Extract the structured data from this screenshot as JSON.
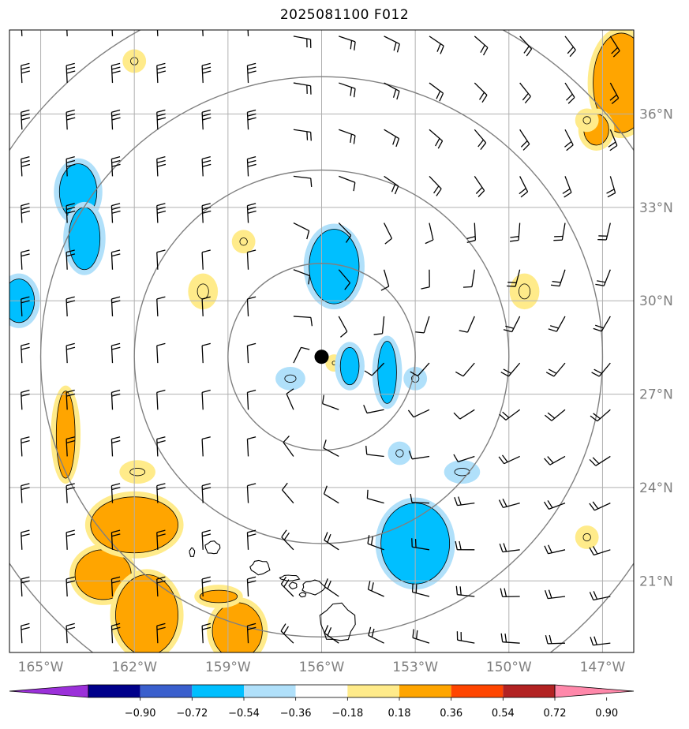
{
  "title": "2025081100 F012",
  "map": {
    "lon_range": [
      -166.0,
      -146.0
    ],
    "lat_range": [
      18.7,
      38.7
    ],
    "lon_ticks": [
      {
        "lon": -165,
        "label": "165°W"
      },
      {
        "lon": -162,
        "label": "162°W"
      },
      {
        "lon": -159,
        "label": "159°W"
      },
      {
        "lon": -156,
        "label": "156°W"
      },
      {
        "lon": -153,
        "label": "153°W"
      },
      {
        "lon": -150,
        "label": "150°W"
      },
      {
        "lon": -147,
        "label": "147°W"
      }
    ],
    "lat_ticks": [
      {
        "lat": 21,
        "label": "21°N"
      },
      {
        "lat": 24,
        "label": "24°N"
      },
      {
        "lat": 27,
        "label": "27°N"
      },
      {
        "lat": 30,
        "label": "30°N"
      },
      {
        "lat": 33,
        "label": "33°N"
      },
      {
        "lat": 36,
        "label": "36°N"
      }
    ],
    "center": {
      "lon": -156.0,
      "lat": 28.2
    },
    "range_rings_deg": [
      3.0,
      6.0,
      9.0,
      12.0
    ],
    "grid": true,
    "colors": {
      "grid": "#b0b0b0",
      "ring": "#808080",
      "frame": "#000000",
      "coast": "#000000",
      "barb": "#000000"
    }
  },
  "colorbar": {
    "levels": [
      "−0.90",
      "−0.72",
      "−0.54",
      "−0.36",
      "−0.18",
      "0.18",
      "0.36",
      "0.54",
      "0.72",
      "0.90"
    ],
    "colors": [
      "#9b30d9",
      "#00008b",
      "#3a5fcd",
      "#00bfff",
      "#b0e0fa",
      "#ffffff",
      "#ffeb8a",
      "#ffa500",
      "#ff4500",
      "#b22222",
      "#ff88aa"
    ],
    "extend": "both"
  },
  "features": {
    "positive_regions": [
      {
        "lon": -163.0,
        "lat": 21.2,
        "rlon": 0.9,
        "rlat": 0.8,
        "core": true
      },
      {
        "lon": -162.0,
        "lat": 22.8,
        "rlon": 1.4,
        "rlat": 0.9,
        "core": true
      },
      {
        "lon": -161.6,
        "lat": 19.9,
        "rlon": 1.0,
        "rlat": 1.3,
        "core": true
      },
      {
        "lon": -158.7,
        "lat": 19.4,
        "rlon": 0.8,
        "rlat": 0.9,
        "core": true
      },
      {
        "lon": -164.2,
        "lat": 25.7,
        "rlon": 0.3,
        "rlat": 1.4,
        "core": true
      },
      {
        "lon": -146.4,
        "lat": 37.0,
        "rlon": 0.9,
        "rlat": 1.6,
        "core": true
      },
      {
        "lon": -147.2,
        "lat": 35.5,
        "rlon": 0.4,
        "rlat": 0.5,
        "core": true
      },
      {
        "lon": -159.3,
        "lat": 20.5,
        "rlon": 0.6,
        "rlat": 0.2,
        "core": true
      },
      {
        "lon": -149.5,
        "lat": 30.3,
        "rlon": 0.3,
        "rlat": 0.4,
        "core": false
      },
      {
        "lon": -161.9,
        "lat": 24.5,
        "rlon": 0.4,
        "rlat": 0.2,
        "core": false
      },
      {
        "lon": -162.0,
        "lat": 37.7,
        "rlon": 0.2,
        "rlat": 0.2,
        "core": false
      },
      {
        "lon": -158.5,
        "lat": 31.9,
        "rlon": 0.2,
        "rlat": 0.2,
        "core": false
      },
      {
        "lon": -159.8,
        "lat": 30.3,
        "rlon": 0.3,
        "rlat": 0.4,
        "core": false
      },
      {
        "lon": -147.5,
        "lat": 35.8,
        "rlon": 0.2,
        "rlat": 0.2,
        "core": false
      },
      {
        "lon": -147.5,
        "lat": 22.4,
        "rlon": 0.2,
        "rlat": 0.2,
        "core": false
      },
      {
        "lon": -155.6,
        "lat": 28.0,
        "rlon": 0.1,
        "rlat": 0.1,
        "core": false
      }
    ],
    "negative_regions": [
      {
        "lon": -163.8,
        "lat": 33.5,
        "rlon": 0.6,
        "rlat": 0.9,
        "core": true
      },
      {
        "lon": -163.6,
        "lat": 32.0,
        "rlon": 0.5,
        "rlat": 1.0,
        "core": true
      },
      {
        "lon": -165.7,
        "lat": 30.0,
        "rlon": 0.5,
        "rlat": 0.7,
        "core": true
      },
      {
        "lon": -155.6,
        "lat": 31.1,
        "rlon": 0.8,
        "rlat": 1.2,
        "core": true
      },
      {
        "lon": -153.0,
        "lat": 22.2,
        "rlon": 1.1,
        "rlat": 1.3,
        "core": true
      },
      {
        "lon": -153.9,
        "lat": 27.7,
        "rlon": 0.3,
        "rlat": 1.0,
        "core": true
      },
      {
        "lon": -155.1,
        "lat": 27.9,
        "rlon": 0.3,
        "rlat": 0.6,
        "core": true
      },
      {
        "lon": -157.0,
        "lat": 27.5,
        "rlon": 0.3,
        "rlat": 0.2,
        "core": false
      },
      {
        "lon": -153.5,
        "lat": 25.1,
        "rlon": 0.2,
        "rlat": 0.2,
        "core": false
      },
      {
        "lon": -151.5,
        "lat": 24.5,
        "rlon": 0.4,
        "rlat": 0.2,
        "core": false
      },
      {
        "lon": -153.0,
        "lat": 27.5,
        "rlon": 0.2,
        "rlat": 0.2,
        "core": false
      }
    ],
    "islands": [
      {
        "name": "Hawaii",
        "lon": -155.5,
        "lat": 19.6,
        "rlon": 0.55,
        "rlat": 0.6
      },
      {
        "name": "Maui",
        "lon": -156.3,
        "lat": 20.8,
        "rlon": 0.35,
        "rlat": 0.22
      },
      {
        "name": "Molokai",
        "lon": -157.0,
        "lat": 21.1,
        "rlon": 0.3,
        "rlat": 0.09
      },
      {
        "name": "Lanai",
        "lon": -156.9,
        "lat": 20.85,
        "rlon": 0.12,
        "rlat": 0.1
      },
      {
        "name": "Kahoolawe",
        "lon": -156.6,
        "lat": 20.55,
        "rlon": 0.1,
        "rlat": 0.07
      },
      {
        "name": "Oahu",
        "lon": -157.95,
        "lat": 21.45,
        "rlon": 0.3,
        "rlat": 0.22
      },
      {
        "name": "Kauai",
        "lon": -159.5,
        "lat": 22.05,
        "rlon": 0.23,
        "rlat": 0.2
      },
      {
        "name": "Niihau",
        "lon": -160.15,
        "lat": 21.9,
        "rlon": 0.08,
        "rlat": 0.14
      }
    ]
  }
}
